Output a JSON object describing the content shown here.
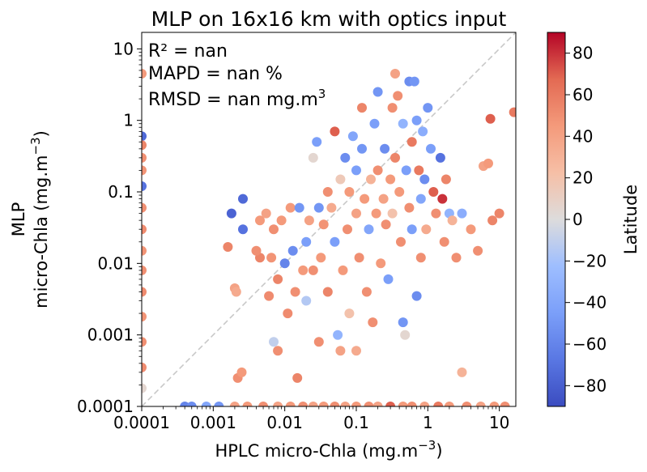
{
  "chart_data": {
    "type": "scatter",
    "title": "MLP on 16x16 km with optics input",
    "xlabel": "HPLC micro-Chla (mg.m",
    "xlabel_sup": "−3",
    "xlabel_end": ")",
    "ylabel_line1": "MLP",
    "ylabel_line2": "micro-Chla (mg.m",
    "ylabel_sup": "−3",
    "ylabel_end": ")",
    "x_scale": "log",
    "y_scale": "log",
    "xlim": [
      0.0001,
      17
    ],
    "ylim": [
      0.0001,
      17
    ],
    "x_ticks": [
      {
        "value": 0.0001,
        "label": "0.0001"
      },
      {
        "value": 0.001,
        "label": "0.001"
      },
      {
        "value": 0.01,
        "label": "0.01"
      },
      {
        "value": 0.1,
        "label": "0.1"
      },
      {
        "value": 1,
        "label": "1"
      },
      {
        "value": 10,
        "label": "10"
      }
    ],
    "y_ticks": [
      {
        "value": 0.0001,
        "label": "0.0001"
      },
      {
        "value": 0.001,
        "label": "0.001"
      },
      {
        "value": 0.01,
        "label": "0.01"
      },
      {
        "value": 0.1,
        "label": "0.1"
      },
      {
        "value": 1,
        "label": "1"
      },
      {
        "value": 10,
        "label": "10"
      }
    ],
    "identity_line": true,
    "stats": {
      "r2": "R² = nan",
      "mapd": "MAPD = nan %",
      "rmsd": "RMSD = nan mg.m",
      "rmsd_sup": "3"
    },
    "colorbar": {
      "label": "Latitude",
      "range": [
        -90,
        90
      ],
      "colormap": "coolwarm",
      "ticks": [
        {
          "value": 80,
          "label": "80"
        },
        {
          "value": 60,
          "label": "60"
        },
        {
          "value": 40,
          "label": "40"
        },
        {
          "value": 20,
          "label": "20"
        },
        {
          "value": 0,
          "label": "0"
        },
        {
          "value": -20,
          "label": "−20"
        },
        {
          "value": -40,
          "label": "−40"
        },
        {
          "value": -60,
          "label": "−60"
        },
        {
          "value": -80,
          "label": "−80"
        }
      ]
    },
    "points": [
      {
        "x": 0.0001,
        "y": 4.5,
        "lat": 45
      },
      {
        "x": 0.0001,
        "y": 0.6,
        "lat": -75
      },
      {
        "x": 0.0001,
        "y": 0.45,
        "lat": 55
      },
      {
        "x": 0.0001,
        "y": 0.3,
        "lat": 50
      },
      {
        "x": 0.0001,
        "y": 0.2,
        "lat": 48
      },
      {
        "x": 0.0001,
        "y": 0.12,
        "lat": -70
      },
      {
        "x": 0.0001,
        "y": 0.06,
        "lat": 50
      },
      {
        "x": 0.0001,
        "y": 0.03,
        "lat": 52
      },
      {
        "x": 0.0001,
        "y": 0.015,
        "lat": 48
      },
      {
        "x": 0.0001,
        "y": 0.008,
        "lat": 50
      },
      {
        "x": 0.0001,
        "y": 0.004,
        "lat": 52
      },
      {
        "x": 0.0001,
        "y": 0.0018,
        "lat": 48
      },
      {
        "x": 0.0001,
        "y": 0.0008,
        "lat": 50
      },
      {
        "x": 0.0001,
        "y": 0.00035,
        "lat": 52
      },
      {
        "x": 0.0001,
        "y": 0.00018,
        "lat": 5
      },
      {
        "x": 0.0016,
        "y": 0.017,
        "lat": 55
      },
      {
        "x": 0.002,
        "y": 0.0045,
        "lat": 40
      },
      {
        "x": 0.0021,
        "y": 0.004,
        "lat": 35
      },
      {
        "x": 0.0022,
        "y": 0.00025,
        "lat": 50
      },
      {
        "x": 0.0025,
        "y": 0.0003,
        "lat": 45
      },
      {
        "x": 0.0026,
        "y": 0.08,
        "lat": -75
      },
      {
        "x": 0.0026,
        "y": 0.03,
        "lat": -70
      },
      {
        "x": 0.0018,
        "y": 0.05,
        "lat": -78
      },
      {
        "x": 0.0045,
        "y": 0.04,
        "lat": 45
      },
      {
        "x": 0.0045,
        "y": 0.012,
        "lat": 55
      },
      {
        "x": 0.004,
        "y": 0.015,
        "lat": 50
      },
      {
        "x": 0.006,
        "y": 0.0035,
        "lat": 52
      },
      {
        "x": 0.0055,
        "y": 0.05,
        "lat": 40
      },
      {
        "x": 0.0065,
        "y": 0.012,
        "lat": 48
      },
      {
        "x": 0.007,
        "y": 0.03,
        "lat": 50
      },
      {
        "x": 0.007,
        "y": 0.0008,
        "lat": -10
      },
      {
        "x": 0.008,
        "y": 0.0006,
        "lat": 50
      },
      {
        "x": 0.008,
        "y": 0.006,
        "lat": 55
      },
      {
        "x": 0.009,
        "y": 0.04,
        "lat": 45
      },
      {
        "x": 0.01,
        "y": 0.01,
        "lat": -60
      },
      {
        "x": 0.011,
        "y": 0.002,
        "lat": 52
      },
      {
        "x": 0.012,
        "y": 0.06,
        "lat": 45
      },
      {
        "x": 0.013,
        "y": 0.015,
        "lat": -55
      },
      {
        "x": 0.014,
        "y": 0.004,
        "lat": 50
      },
      {
        "x": 0.015,
        "y": 0.00025,
        "lat": 55
      },
      {
        "x": 0.016,
        "y": 0.06,
        "lat": -50
      },
      {
        "x": 0.018,
        "y": 0.008,
        "lat": 45
      },
      {
        "x": 0.02,
        "y": 0.02,
        "lat": -45
      },
      {
        "x": 0.02,
        "y": 0.003,
        "lat": -15
      },
      {
        "x": 0.022,
        "y": 0.04,
        "lat": 40
      },
      {
        "x": 0.025,
        "y": 0.008,
        "lat": 50
      },
      {
        "x": 0.025,
        "y": 0.3,
        "lat": 5
      },
      {
        "x": 0.028,
        "y": 0.5,
        "lat": -45
      },
      {
        "x": 0.03,
        "y": 0.06,
        "lat": -50
      },
      {
        "x": 0.03,
        "y": 0.0008,
        "lat": 50
      },
      {
        "x": 0.032,
        "y": 0.012,
        "lat": 45
      },
      {
        "x": 0.035,
        "y": 0.035,
        "lat": 48
      },
      {
        "x": 0.04,
        "y": 0.1,
        "lat": 50
      },
      {
        "x": 0.04,
        "y": 0.004,
        "lat": 55
      },
      {
        "x": 0.045,
        "y": 0.06,
        "lat": 35
      },
      {
        "x": 0.05,
        "y": 0.7,
        "lat": 70
      },
      {
        "x": 0.05,
        "y": 0.02,
        "lat": -45
      },
      {
        "x": 0.055,
        "y": 0.001,
        "lat": -30
      },
      {
        "x": 0.06,
        "y": 0.15,
        "lat": 15
      },
      {
        "x": 0.06,
        "y": 0.0006,
        "lat": 40
      },
      {
        "x": 0.065,
        "y": 0.008,
        "lat": 45
      },
      {
        "x": 0.07,
        "y": 0.3,
        "lat": -55
      },
      {
        "x": 0.075,
        "y": 0.03,
        "lat": 50
      },
      {
        "x": 0.08,
        "y": 0.1,
        "lat": 45
      },
      {
        "x": 0.08,
        "y": 0.002,
        "lat": 20
      },
      {
        "x": 0.09,
        "y": 0.6,
        "lat": -40
      },
      {
        "x": 0.1,
        "y": 0.2,
        "lat": -45
      },
      {
        "x": 0.1,
        "y": 0.05,
        "lat": 40
      },
      {
        "x": 0.1,
        "y": 0.0006,
        "lat": 35
      },
      {
        "x": 0.11,
        "y": 0.012,
        "lat": 50
      },
      {
        "x": 0.12,
        "y": 1.5,
        "lat": 55
      },
      {
        "x": 0.12,
        "y": 0.4,
        "lat": -50
      },
      {
        "x": 0.13,
        "y": 0.08,
        "lat": 45
      },
      {
        "x": 0.14,
        "y": 0.004,
        "lat": 50
      },
      {
        "x": 0.15,
        "y": 0.03,
        "lat": -40
      },
      {
        "x": 0.16,
        "y": 0.15,
        "lat": 30
      },
      {
        "x": 0.17,
        "y": 0.0015,
        "lat": 50
      },
      {
        "x": 0.18,
        "y": 0.9,
        "lat": -45
      },
      {
        "x": 0.19,
        "y": 0.05,
        "lat": 45
      },
      {
        "x": 0.2,
        "y": 2.5,
        "lat": -50
      },
      {
        "x": 0.2,
        "y": 0.2,
        "lat": 50
      },
      {
        "x": 0.22,
        "y": 0.01,
        "lat": 45
      },
      {
        "x": 0.24,
        "y": 0.08,
        "lat": 40
      },
      {
        "x": 0.25,
        "y": 0.4,
        "lat": -55
      },
      {
        "x": 0.26,
        "y": 0.035,
        "lat": 50
      },
      {
        "x": 0.28,
        "y": 0.006,
        "lat": -45
      },
      {
        "x": 0.3,
        "y": 0.0001,
        "lat": 70
      },
      {
        "x": 0.3,
        "y": 0.15,
        "lat": 45
      },
      {
        "x": 0.32,
        "y": 1.5,
        "lat": 50
      },
      {
        "x": 0.32,
        "y": 0.05,
        "lat": 20
      },
      {
        "x": 0.35,
        "y": 4.5,
        "lat": 40
      },
      {
        "x": 0.35,
        "y": 0.3,
        "lat": 55
      },
      {
        "x": 0.38,
        "y": 2.2,
        "lat": 50
      },
      {
        "x": 0.4,
        "y": 0.1,
        "lat": 45
      },
      {
        "x": 0.42,
        "y": 0.02,
        "lat": 50
      },
      {
        "x": 0.45,
        "y": 0.9,
        "lat": -30
      },
      {
        "x": 0.45,
        "y": 0.0015,
        "lat": -50
      },
      {
        "x": 0.48,
        "y": 0.001,
        "lat": 5
      },
      {
        "x": 0.5,
        "y": 0.2,
        "lat": -45
      },
      {
        "x": 0.55,
        "y": 3.5,
        "lat": -55
      },
      {
        "x": 0.55,
        "y": 0.06,
        "lat": 50
      },
      {
        "x": 0.6,
        "y": 0.5,
        "lat": 60
      },
      {
        "x": 0.6,
        "y": 0.03,
        "lat": -45
      },
      {
        "x": 0.65,
        "y": 3.5,
        "lat": -50
      },
      {
        "x": 0.7,
        "y": 1.0,
        "lat": -45
      },
      {
        "x": 0.7,
        "y": 0.0035,
        "lat": -55
      },
      {
        "x": 0.75,
        "y": 0.2,
        "lat": 60
      },
      {
        "x": 0.8,
        "y": 0.08,
        "lat": -40
      },
      {
        "x": 0.8,
        "y": 0.012,
        "lat": 50
      },
      {
        "x": 0.85,
        "y": 0.7,
        "lat": -35
      },
      {
        "x": 0.9,
        "y": 0.15,
        "lat": -55
      },
      {
        "x": 0.95,
        "y": 0.03,
        "lat": 35
      },
      {
        "x": 1.0,
        "y": 1.5,
        "lat": -50
      },
      {
        "x": 1.1,
        "y": 0.4,
        "lat": -45
      },
      {
        "x": 1.2,
        "y": 0.1,
        "lat": 70
      },
      {
        "x": 1.3,
        "y": 0.05,
        "lat": 50
      },
      {
        "x": 1.4,
        "y": 0.0001,
        "lat": 60
      },
      {
        "x": 1.5,
        "y": 0.3,
        "lat": -70
      },
      {
        "x": 1.6,
        "y": 0.08,
        "lat": 80
      },
      {
        "x": 1.7,
        "y": 0.02,
        "lat": 50
      },
      {
        "x": 1.8,
        "y": 0.15,
        "lat": 55
      },
      {
        "x": 2.0,
        "y": 0.05,
        "lat": -30
      },
      {
        "x": 2.2,
        "y": 0.04,
        "lat": 30
      },
      {
        "x": 2.5,
        "y": 0.012,
        "lat": 50
      },
      {
        "x": 3.0,
        "y": 0.0003,
        "lat": 30
      },
      {
        "x": 3.0,
        "y": 0.05,
        "lat": -35
      },
      {
        "x": 4.0,
        "y": 0.03,
        "lat": 45
      },
      {
        "x": 5.0,
        "y": 0.015,
        "lat": 50
      },
      {
        "x": 6.0,
        "y": 0.23,
        "lat": 40
      },
      {
        "x": 7.0,
        "y": 0.25,
        "lat": 45
      },
      {
        "x": 7.5,
        "y": 1.05,
        "lat": 70
      },
      {
        "x": 8.0,
        "y": 0.04,
        "lat": 55
      },
      {
        "x": 10.0,
        "y": 0.05,
        "lat": 55
      },
      {
        "x": 16.0,
        "y": 1.3,
        "lat": 60
      },
      {
        "x": 0.0004,
        "y": 0.0001,
        "lat": -60
      },
      {
        "x": 0.0005,
        "y": 0.0001,
        "lat": -55
      },
      {
        "x": 0.0008,
        "y": 0.0001,
        "lat": -40
      },
      {
        "x": 0.0012,
        "y": 0.0001,
        "lat": -50
      },
      {
        "x": 0.002,
        "y": 0.0001,
        "lat": 40
      },
      {
        "x": 0.003,
        "y": 0.0001,
        "lat": 45
      },
      {
        "x": 0.005,
        "y": 0.0001,
        "lat": 50
      },
      {
        "x": 0.008,
        "y": 0.0001,
        "lat": 40
      },
      {
        "x": 0.012,
        "y": 0.0001,
        "lat": 45
      },
      {
        "x": 0.018,
        "y": 0.0001,
        "lat": 50
      },
      {
        "x": 0.025,
        "y": 0.0001,
        "lat": 40
      },
      {
        "x": 0.035,
        "y": 0.0001,
        "lat": 45
      },
      {
        "x": 0.05,
        "y": 0.0001,
        "lat": 50
      },
      {
        "x": 0.07,
        "y": 0.0001,
        "lat": 40
      },
      {
        "x": 0.1,
        "y": 0.0001,
        "lat": 45
      },
      {
        "x": 0.15,
        "y": 0.0001,
        "lat": 50
      },
      {
        "x": 0.2,
        "y": 0.0001,
        "lat": 40
      },
      {
        "x": 0.45,
        "y": 0.0001,
        "lat": 45
      },
      {
        "x": 0.6,
        "y": 0.0001,
        "lat": 50
      },
      {
        "x": 0.9,
        "y": 0.0001,
        "lat": 40
      },
      {
        "x": 2.0,
        "y": 0.0001,
        "lat": 45
      },
      {
        "x": 3.5,
        "y": 0.0001,
        "lat": 50
      },
      {
        "x": 5.5,
        "y": 0.0001,
        "lat": 40
      },
      {
        "x": 8.5,
        "y": 0.0001,
        "lat": 45
      },
      {
        "x": 12.0,
        "y": 0.0001,
        "lat": 50
      }
    ]
  }
}
